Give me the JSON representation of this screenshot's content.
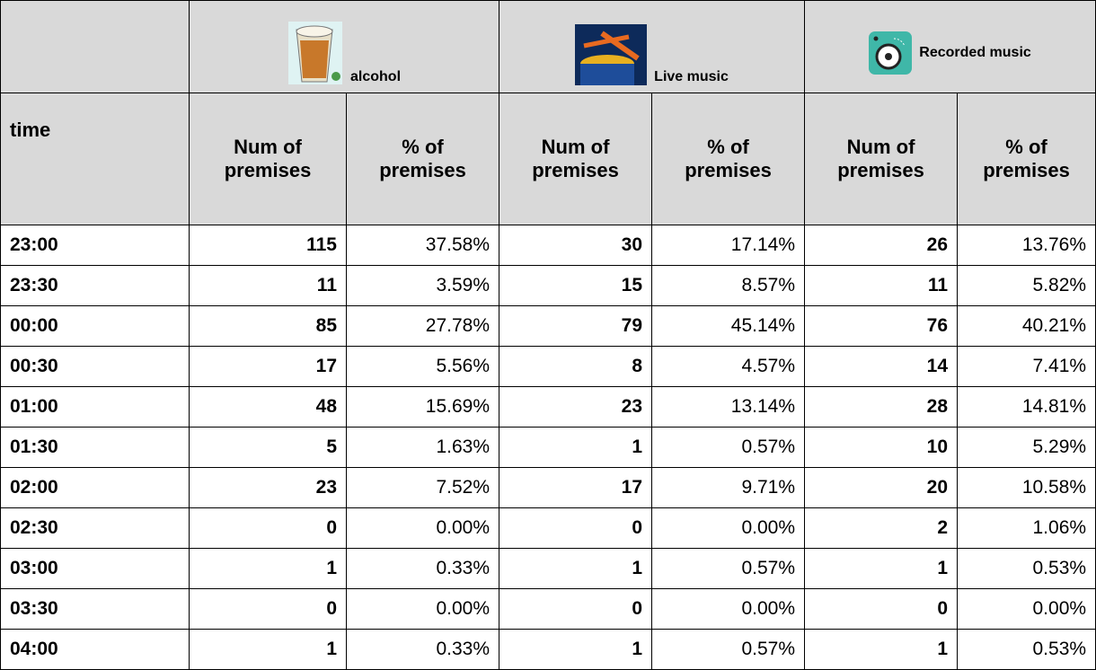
{
  "table": {
    "groups": [
      "alcohol",
      "Live music",
      "Recorded music"
    ],
    "columns": [
      "time",
      "Num of premises",
      "% of premises",
      "Num of premises",
      "% of premises",
      "Num of premises",
      "% of premises"
    ],
    "rows": [
      [
        "23:00",
        "115",
        "37.58%",
        "30",
        "17.14%",
        "26",
        "13.76%"
      ],
      [
        "23:30",
        "11",
        "3.59%",
        "15",
        "8.57%",
        "11",
        "5.82%"
      ],
      [
        "00:00",
        "85",
        "27.78%",
        "79",
        "45.14%",
        "76",
        "40.21%"
      ],
      [
        "00:30",
        "17",
        "5.56%",
        "8",
        "4.57%",
        "14",
        "7.41%"
      ],
      [
        "01:00",
        "48",
        "15.69%",
        "23",
        "13.14%",
        "28",
        "14.81%"
      ],
      [
        "01:30",
        "5",
        "1.63%",
        "1",
        "0.57%",
        "10",
        "5.29%"
      ],
      [
        "02:00",
        "23",
        "7.52%",
        "17",
        "9.71%",
        "20",
        "10.58%"
      ],
      [
        "02:30",
        "0",
        "0.00%",
        "0",
        "0.00%",
        "2",
        "1.06%"
      ],
      [
        "03:00",
        "1",
        "0.33%",
        "1",
        "0.57%",
        "1",
        "0.53%"
      ],
      [
        "03:30",
        "0",
        "0.00%",
        "0",
        "0.00%",
        "0",
        "0.00%"
      ],
      [
        "04:00",
        "1",
        "0.33%",
        "1",
        "0.57%",
        "1",
        "0.53%"
      ]
    ]
  }
}
